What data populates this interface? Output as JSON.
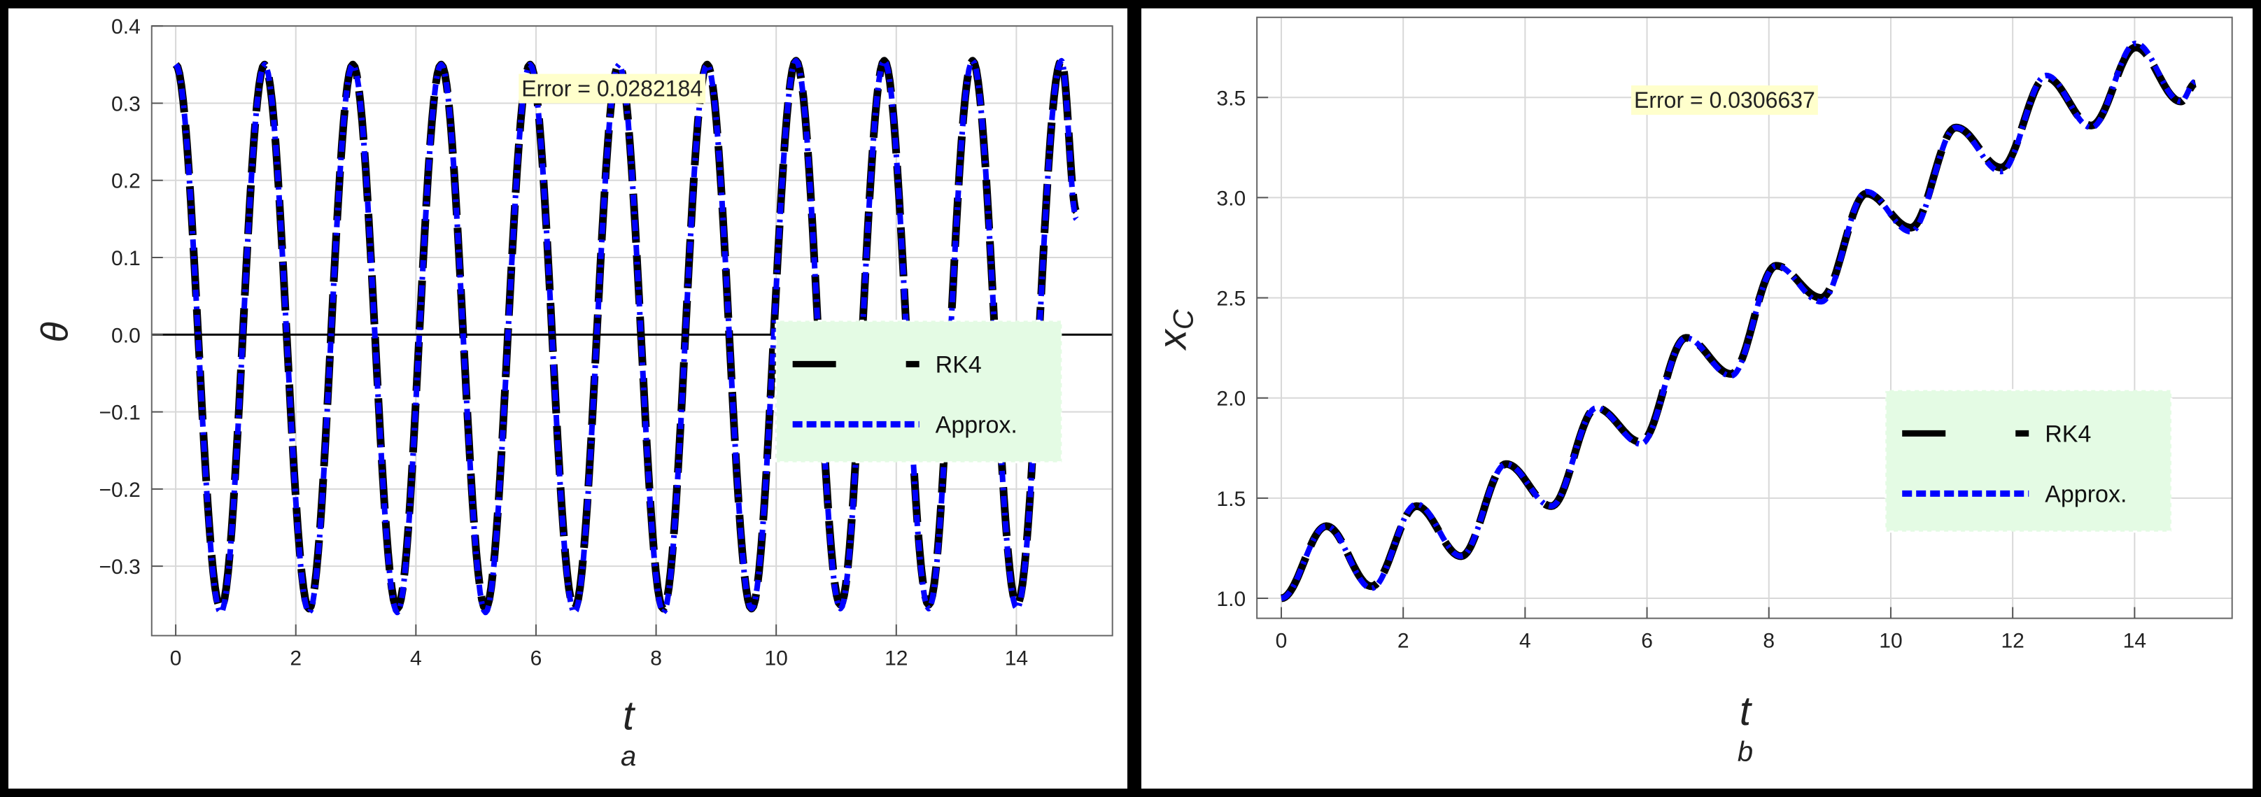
{
  "chart_data": [
    {
      "type": "line",
      "panel_label": "a",
      "xlabel": "t",
      "ylabel": "θ",
      "xlim": [
        -0.4,
        15.6
      ],
      "ylim": [
        -0.39,
        0.4
      ],
      "xticks": [
        0,
        2,
        4,
        6,
        8,
        10,
        12,
        14
      ],
      "xtick_labels": [
        "0",
        "2",
        "4",
        "6",
        "8",
        "10",
        "12",
        "14"
      ],
      "yticks": [
        -0.3,
        -0.2,
        -0.1,
        0.0,
        0.1,
        0.2,
        0.3,
        0.4
      ],
      "ytick_labels": [
        "−0.3",
        "−0.2",
        "−0.1",
        "0.0",
        "0.1",
        "0.2",
        "0.3",
        "0.4"
      ],
      "grid": true,
      "zero_line": true,
      "annotation": "Error = 0.0282184",
      "legend": {
        "placement": "right",
        "entries": [
          "RK4",
          "Approx."
        ]
      },
      "x": [
        0,
        0.75,
        1.48,
        2.22,
        2.95,
        3.69,
        4.42,
        5.16,
        5.9,
        6.64,
        7.38,
        8.12,
        8.85,
        9.59,
        10.33,
        11.07,
        11.8,
        12.54,
        13.27,
        14.01,
        14.75,
        15.0
      ],
      "series": [
        {
          "name": "RK4",
          "color": "#000000",
          "style": "dashed",
          "values": [
            0.35,
            -0.355,
            0.35,
            -0.355,
            0.35,
            -0.355,
            0.35,
            -0.355,
            0.35,
            -0.355,
            0.35,
            -0.355,
            0.35,
            -0.355,
            0.355,
            -0.35,
            0.355,
            -0.35,
            0.355,
            -0.35,
            0.355,
            0.16
          ]
        },
        {
          "name": "Approx.",
          "color": "#0000ff",
          "style": "dotted",
          "values": [
            0.35,
            -0.36,
            0.35,
            -0.36,
            0.35,
            -0.36,
            0.35,
            -0.36,
            0.35,
            -0.36,
            0.35,
            -0.36,
            0.35,
            -0.355,
            0.355,
            -0.355,
            0.355,
            -0.355,
            0.355,
            -0.355,
            0.355,
            0.15
          ]
        }
      ]
    },
    {
      "type": "line",
      "panel_label": "b",
      "xlabel": "t",
      "ylabel": "x",
      "ylabel_sub": "C",
      "xlim": [
        -0.4,
        15.6
      ],
      "ylim": [
        0.9,
        3.9
      ],
      "xticks": [
        0,
        2,
        4,
        6,
        8,
        10,
        12,
        14
      ],
      "xtick_labels": [
        "0",
        "2",
        "4",
        "6",
        "8",
        "10",
        "12",
        "14"
      ],
      "yticks": [
        1.0,
        1.5,
        2.0,
        2.5,
        3.0,
        3.5
      ],
      "ytick_labels": [
        "1.0",
        "1.5",
        "2.0",
        "2.5",
        "3.0",
        "3.5"
      ],
      "grid": true,
      "annotation": "Error = 0.0306637",
      "legend": {
        "placement": "bottom-right",
        "entries": [
          "RK4",
          "Approx."
        ]
      },
      "x": [
        0,
        0.74,
        1.48,
        2.22,
        2.95,
        3.69,
        4.43,
        5.17,
        5.9,
        6.64,
        7.38,
        8.12,
        8.86,
        9.6,
        10.33,
        11.07,
        11.81,
        12.55,
        13.29,
        14.02,
        14.76,
        15.0
      ],
      "series": [
        {
          "name": "RK4",
          "color": "#000000",
          "style": "dashed",
          "values": [
            1.0,
            1.36,
            1.06,
            1.46,
            1.21,
            1.67,
            1.46,
            1.95,
            1.78,
            2.3,
            2.12,
            2.66,
            2.5,
            3.02,
            2.85,
            3.35,
            3.15,
            3.6,
            3.36,
            3.75,
            3.48,
            3.57
          ]
        },
        {
          "name": "Approx.",
          "color": "#0000ff",
          "style": "dotted",
          "values": [
            1.0,
            1.36,
            1.05,
            1.47,
            1.21,
            1.67,
            1.46,
            1.95,
            1.77,
            2.3,
            2.11,
            2.66,
            2.48,
            3.03,
            2.83,
            3.35,
            3.13,
            3.61,
            3.35,
            3.77,
            3.48,
            3.58
          ]
        }
      ]
    }
  ]
}
